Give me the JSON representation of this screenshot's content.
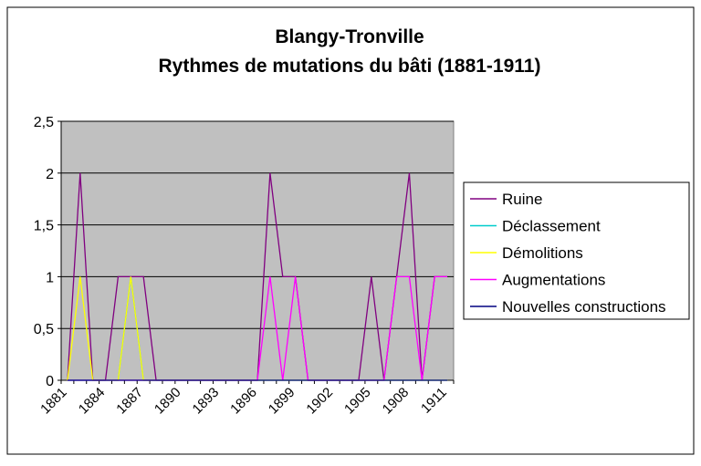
{
  "chart_data": {
    "type": "line",
    "title": [
      "Blangy-Tronville",
      "Rythmes de mutations du bâti (1881-1911)"
    ],
    "categories": [
      "1881",
      null,
      null,
      "1884",
      null,
      null,
      "1887",
      null,
      null,
      "1890",
      null,
      null,
      "1893",
      null,
      null,
      "1896",
      null,
      null,
      "1899",
      null,
      null,
      "1902",
      null,
      null,
      "1905",
      null,
      null,
      "1908",
      null,
      null,
      "1911"
    ],
    "series": [
      {
        "name": "Ruine",
        "color": "#800080",
        "values": [
          0,
          2,
          0,
          0,
          1,
          1,
          1,
          0,
          0,
          0,
          0,
          0,
          0,
          0,
          0,
          0,
          2,
          1,
          1,
          0,
          0,
          0,
          0,
          0,
          1,
          0,
          1,
          2,
          0,
          1,
          1
        ]
      },
      {
        "name": "Déclassement",
        "color": "#00CCCC",
        "values": [
          0,
          0,
          0,
          0,
          0,
          1,
          0,
          0,
          0,
          0,
          0,
          0,
          0,
          0,
          0,
          0,
          0,
          0,
          0,
          0,
          0,
          0,
          0,
          0,
          0,
          0,
          0,
          0,
          0,
          0,
          0
        ]
      },
      {
        "name": "Démolitions",
        "color": "#FFFF00",
        "values": [
          0,
          1,
          0,
          0,
          0,
          1,
          0,
          0,
          0,
          0,
          0,
          0,
          0,
          0,
          0,
          0,
          0,
          0,
          0,
          0,
          0,
          0,
          0,
          0,
          0,
          0,
          0,
          0,
          0,
          0,
          0
        ]
      },
      {
        "name": "Augmentations",
        "color": "#FF00FF",
        "values": [
          0,
          0,
          0,
          0,
          0,
          0,
          0,
          0,
          0,
          0,
          0,
          0,
          0,
          0,
          0,
          0,
          1,
          0,
          1,
          0,
          0,
          0,
          0,
          0,
          0,
          0,
          1,
          1,
          0,
          1,
          1
        ]
      },
      {
        "name": "Nouvelles constructions",
        "color": "#000080",
        "values": [
          0,
          0,
          0,
          0,
          0,
          0,
          0,
          0,
          0,
          0,
          0,
          0,
          0,
          0,
          0,
          0,
          0,
          0,
          0,
          0,
          0,
          0,
          0,
          0,
          0,
          0,
          0,
          0,
          0,
          0,
          0
        ]
      }
    ],
    "ylim": [
      0,
      2.5
    ],
    "yticks": [
      0,
      {
        "value": 0.5,
        "label": "0,5"
      },
      1,
      {
        "value": 1.5,
        "label": "1,5"
      },
      2,
      {
        "value": 2.5,
        "label": "2,5"
      }
    ],
    "grid": true,
    "plot_background": "#C0C0C0",
    "legend": "right"
  }
}
